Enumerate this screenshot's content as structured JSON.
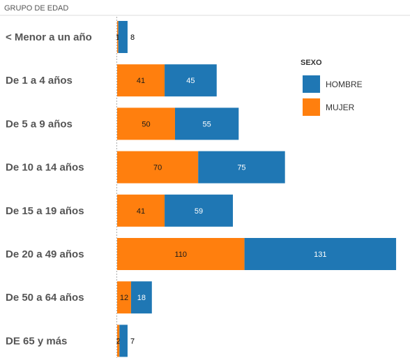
{
  "chart_data": {
    "type": "bar",
    "orientation": "horizontal",
    "stacked": true,
    "header": "GRUPO DE EDAD",
    "categories": [
      "< Menor a un año",
      "De 1 a 4 años",
      "De 5 a 9 años",
      "De 10 a 14 años",
      "De 15 a 19 años",
      "De 20 a 49 años",
      "De 50 a 64 años",
      "DE 65 y más"
    ],
    "series": [
      {
        "name": "MUJER",
        "color": "#ff7f0e",
        "values": [
          1,
          41,
          50,
          70,
          41,
          110,
          12,
          2
        ]
      },
      {
        "name": "HOMBRE",
        "color": "#1f77b4",
        "values": [
          8,
          45,
          55,
          75,
          59,
          131,
          18,
          7
        ]
      }
    ],
    "legend": {
      "title": "SEXO",
      "placement": "right",
      "items": [
        {
          "label": "HOMBRE",
          "color": "#1f77b4"
        },
        {
          "label": "MUJER",
          "color": "#ff7f0e"
        }
      ]
    },
    "grid": false
  }
}
